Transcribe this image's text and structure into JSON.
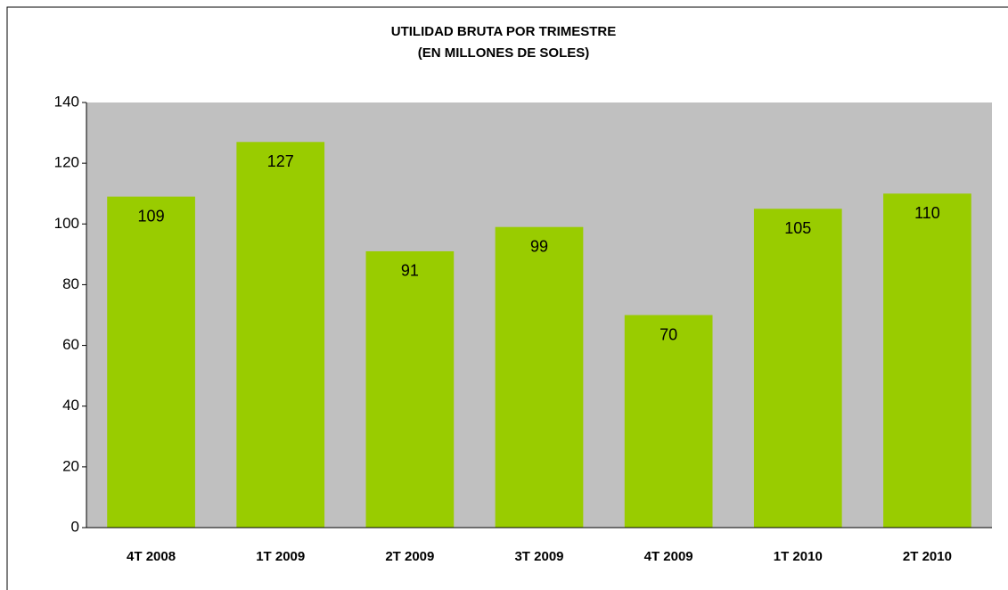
{
  "chart_data": {
    "type": "bar",
    "title": "UTILIDAD BRUTA POR TRIMESTRE",
    "subtitle": "(EN MILLONES DE SOLES)",
    "categories": [
      "4T 2008",
      "1T 2009",
      "2T 2009",
      "3T 2009",
      "4T 2009",
      "1T 2010",
      "2T 2010"
    ],
    "values": [
      109,
      127,
      91,
      99,
      70,
      105,
      110
    ],
    "color": "#99cc00",
    "plot_background": "#c0c0c0",
    "ylim": [
      0,
      140
    ],
    "yticks": [
      0,
      20,
      40,
      60,
      80,
      100,
      120,
      140
    ],
    "grid": false
  }
}
